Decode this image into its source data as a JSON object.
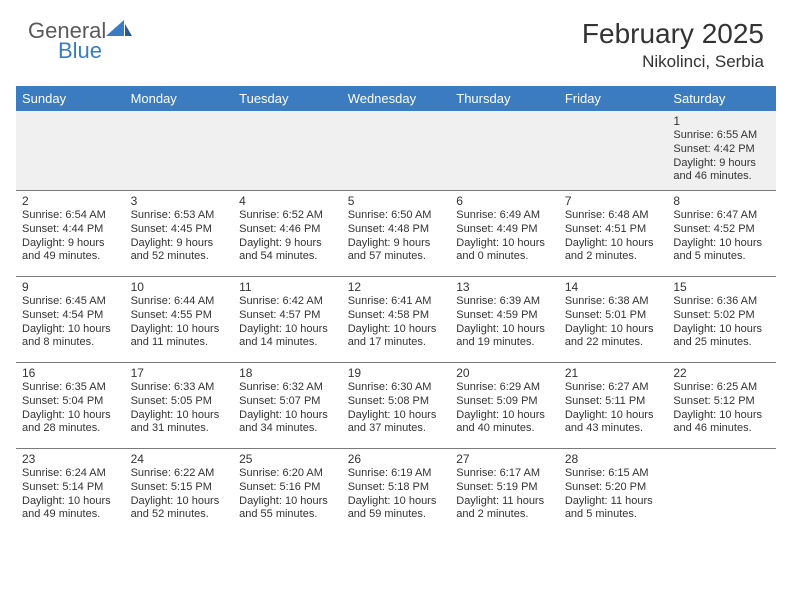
{
  "brand": {
    "general": "General",
    "blue": "Blue"
  },
  "title": "February 2025",
  "location": "Nikolinci, Serbia",
  "colors": {
    "header_bg": "#3b7bbf",
    "header_text": "#ffffff",
    "body_text": "#333333",
    "grid_line": "#7a7a7a",
    "empty_bg": "#f0f0f0",
    "page_bg": "#ffffff",
    "logo_gray": "#5a5a5a",
    "logo_blue": "#3b7bbf"
  },
  "dayHeaders": [
    "Sunday",
    "Monday",
    "Tuesday",
    "Wednesday",
    "Thursday",
    "Friday",
    "Saturday"
  ],
  "weeks": [
    [
      null,
      null,
      null,
      null,
      null,
      null,
      {
        "n": "1",
        "sr": "Sunrise: 6:55 AM",
        "ss": "Sunset: 4:42 PM",
        "d1": "Daylight: 9 hours",
        "d2": "and 46 minutes."
      }
    ],
    [
      {
        "n": "2",
        "sr": "Sunrise: 6:54 AM",
        "ss": "Sunset: 4:44 PM",
        "d1": "Daylight: 9 hours",
        "d2": "and 49 minutes."
      },
      {
        "n": "3",
        "sr": "Sunrise: 6:53 AM",
        "ss": "Sunset: 4:45 PM",
        "d1": "Daylight: 9 hours",
        "d2": "and 52 minutes."
      },
      {
        "n": "4",
        "sr": "Sunrise: 6:52 AM",
        "ss": "Sunset: 4:46 PM",
        "d1": "Daylight: 9 hours",
        "d2": "and 54 minutes."
      },
      {
        "n": "5",
        "sr": "Sunrise: 6:50 AM",
        "ss": "Sunset: 4:48 PM",
        "d1": "Daylight: 9 hours",
        "d2": "and 57 minutes."
      },
      {
        "n": "6",
        "sr": "Sunrise: 6:49 AM",
        "ss": "Sunset: 4:49 PM",
        "d1": "Daylight: 10 hours",
        "d2": "and 0 minutes."
      },
      {
        "n": "7",
        "sr": "Sunrise: 6:48 AM",
        "ss": "Sunset: 4:51 PM",
        "d1": "Daylight: 10 hours",
        "d2": "and 2 minutes."
      },
      {
        "n": "8",
        "sr": "Sunrise: 6:47 AM",
        "ss": "Sunset: 4:52 PM",
        "d1": "Daylight: 10 hours",
        "d2": "and 5 minutes."
      }
    ],
    [
      {
        "n": "9",
        "sr": "Sunrise: 6:45 AM",
        "ss": "Sunset: 4:54 PM",
        "d1": "Daylight: 10 hours",
        "d2": "and 8 minutes."
      },
      {
        "n": "10",
        "sr": "Sunrise: 6:44 AM",
        "ss": "Sunset: 4:55 PM",
        "d1": "Daylight: 10 hours",
        "d2": "and 11 minutes."
      },
      {
        "n": "11",
        "sr": "Sunrise: 6:42 AM",
        "ss": "Sunset: 4:57 PM",
        "d1": "Daylight: 10 hours",
        "d2": "and 14 minutes."
      },
      {
        "n": "12",
        "sr": "Sunrise: 6:41 AM",
        "ss": "Sunset: 4:58 PM",
        "d1": "Daylight: 10 hours",
        "d2": "and 17 minutes."
      },
      {
        "n": "13",
        "sr": "Sunrise: 6:39 AM",
        "ss": "Sunset: 4:59 PM",
        "d1": "Daylight: 10 hours",
        "d2": "and 19 minutes."
      },
      {
        "n": "14",
        "sr": "Sunrise: 6:38 AM",
        "ss": "Sunset: 5:01 PM",
        "d1": "Daylight: 10 hours",
        "d2": "and 22 minutes."
      },
      {
        "n": "15",
        "sr": "Sunrise: 6:36 AM",
        "ss": "Sunset: 5:02 PM",
        "d1": "Daylight: 10 hours",
        "d2": "and 25 minutes."
      }
    ],
    [
      {
        "n": "16",
        "sr": "Sunrise: 6:35 AM",
        "ss": "Sunset: 5:04 PM",
        "d1": "Daylight: 10 hours",
        "d2": "and 28 minutes."
      },
      {
        "n": "17",
        "sr": "Sunrise: 6:33 AM",
        "ss": "Sunset: 5:05 PM",
        "d1": "Daylight: 10 hours",
        "d2": "and 31 minutes."
      },
      {
        "n": "18",
        "sr": "Sunrise: 6:32 AM",
        "ss": "Sunset: 5:07 PM",
        "d1": "Daylight: 10 hours",
        "d2": "and 34 minutes."
      },
      {
        "n": "19",
        "sr": "Sunrise: 6:30 AM",
        "ss": "Sunset: 5:08 PM",
        "d1": "Daylight: 10 hours",
        "d2": "and 37 minutes."
      },
      {
        "n": "20",
        "sr": "Sunrise: 6:29 AM",
        "ss": "Sunset: 5:09 PM",
        "d1": "Daylight: 10 hours",
        "d2": "and 40 minutes."
      },
      {
        "n": "21",
        "sr": "Sunrise: 6:27 AM",
        "ss": "Sunset: 5:11 PM",
        "d1": "Daylight: 10 hours",
        "d2": "and 43 minutes."
      },
      {
        "n": "22",
        "sr": "Sunrise: 6:25 AM",
        "ss": "Sunset: 5:12 PM",
        "d1": "Daylight: 10 hours",
        "d2": "and 46 minutes."
      }
    ],
    [
      {
        "n": "23",
        "sr": "Sunrise: 6:24 AM",
        "ss": "Sunset: 5:14 PM",
        "d1": "Daylight: 10 hours",
        "d2": "and 49 minutes."
      },
      {
        "n": "24",
        "sr": "Sunrise: 6:22 AM",
        "ss": "Sunset: 5:15 PM",
        "d1": "Daylight: 10 hours",
        "d2": "and 52 minutes."
      },
      {
        "n": "25",
        "sr": "Sunrise: 6:20 AM",
        "ss": "Sunset: 5:16 PM",
        "d1": "Daylight: 10 hours",
        "d2": "and 55 minutes."
      },
      {
        "n": "26",
        "sr": "Sunrise: 6:19 AM",
        "ss": "Sunset: 5:18 PM",
        "d1": "Daylight: 10 hours",
        "d2": "and 59 minutes."
      },
      {
        "n": "27",
        "sr": "Sunrise: 6:17 AM",
        "ss": "Sunset: 5:19 PM",
        "d1": "Daylight: 11 hours",
        "d2": "and 2 minutes."
      },
      {
        "n": "28",
        "sr": "Sunrise: 6:15 AM",
        "ss": "Sunset: 5:20 PM",
        "d1": "Daylight: 11 hours",
        "d2": "and 5 minutes."
      },
      null
    ]
  ]
}
